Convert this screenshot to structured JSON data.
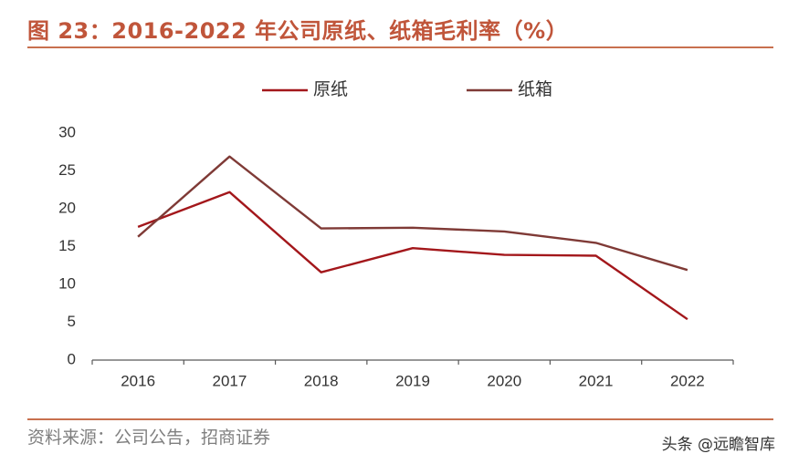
{
  "header": {
    "title": "图 23：2016-2022 年公司原纸、纸箱毛利率（%）"
  },
  "footer": {
    "source": "资料来源：公司公告，招商证券",
    "watermark": "头条 @远瞻智库"
  },
  "colors": {
    "title": "#c0553a",
    "rule": "#c8704e",
    "series_1": "#a3171b",
    "series_2": "#7f3a36",
    "axis": "#595959"
  },
  "chart_data": {
    "type": "line",
    "title": "2016-2022 年公司原纸、纸箱毛利率（%）",
    "categories": [
      "2016",
      "2017",
      "2018",
      "2019",
      "2020",
      "2021",
      "2022"
    ],
    "series": [
      {
        "name": "原纸",
        "values": [
          17.6,
          22.2,
          11.6,
          14.8,
          13.9,
          13.8,
          5.4
        ]
      },
      {
        "name": "纸箱",
        "values": [
          16.3,
          26.9,
          17.4,
          17.5,
          17.0,
          15.5,
          11.9
        ]
      }
    ],
    "yticks": [
      "0",
      "5",
      "10",
      "15",
      "20",
      "25",
      "30"
    ],
    "ylim": [
      0,
      30
    ],
    "xlabel": "",
    "ylabel": "",
    "grid": false,
    "legend": "top"
  }
}
